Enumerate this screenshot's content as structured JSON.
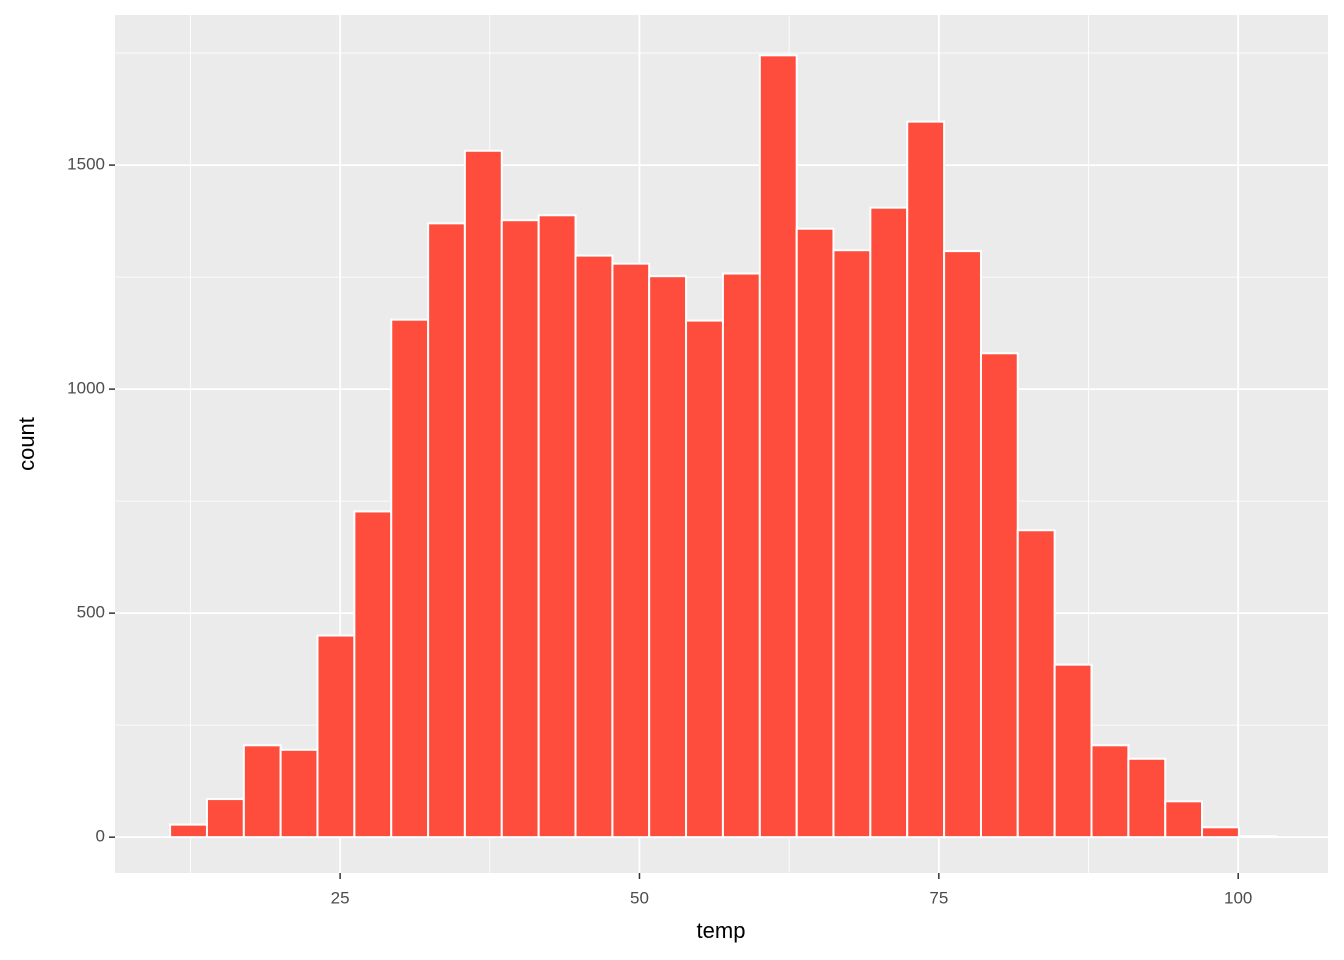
{
  "chart_data": {
    "type": "histogram",
    "x_label": "temp",
    "y_label": "count",
    "bins": [
      10.8,
      13.88,
      16.96,
      20.03,
      23.11,
      26.19,
      29.27,
      32.35,
      35.42,
      38.5,
      41.58,
      44.66,
      47.74,
      50.81,
      53.89,
      56.97,
      60.05,
      63.13,
      66.2,
      69.28,
      72.36,
      75.44,
      78.52,
      81.59,
      84.67,
      87.75,
      90.83,
      93.91,
      96.98,
      100.06,
      103.14
    ],
    "values": [
      28,
      85,
      205,
      195,
      450,
      727,
      1155,
      1370,
      1532,
      1377,
      1388,
      1298,
      1280,
      1252,
      1153,
      1258,
      1745,
      1358,
      1310,
      1405,
      1597,
      1308,
      1080,
      685,
      385,
      205,
      175,
      80,
      22,
      2
    ],
    "color": "#fe4d3c",
    "edge_color": "#ffffff",
    "xlim": [
      6.2,
      107.5
    ],
    "ylim": [
      -80,
      1835
    ],
    "xticks": [
      25,
      50,
      75,
      100
    ],
    "yticks": [
      0,
      500,
      1000,
      1500
    ],
    "x_minor_breaks": [
      12.5,
      37.5,
      62.5,
      87.5
    ],
    "y_minor_breaks": [
      250,
      750,
      1250,
      1750
    ],
    "grid": true
  }
}
